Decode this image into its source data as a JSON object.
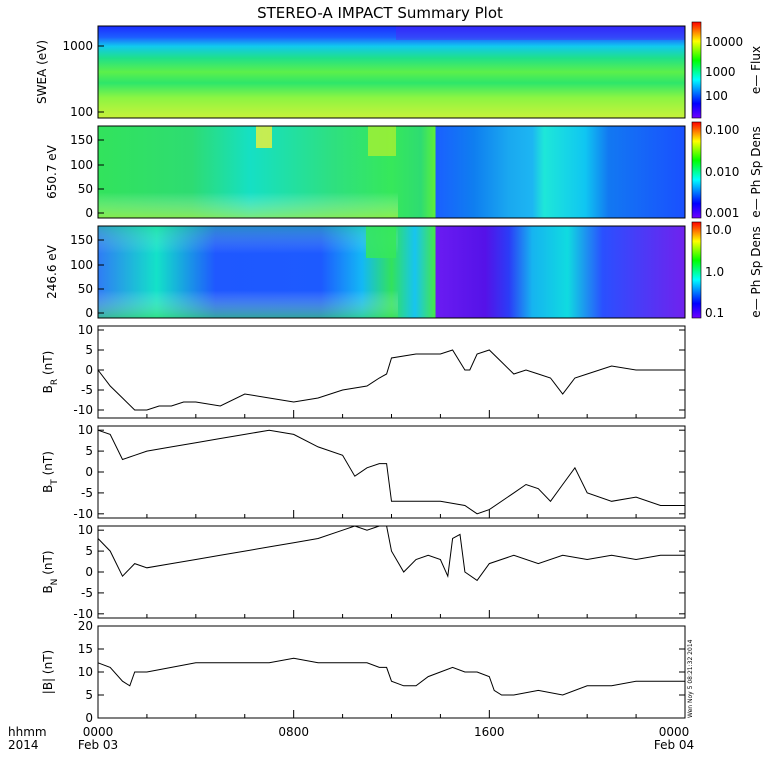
{
  "title": "STEREO-A IMPACT Summary Plot",
  "stamp": "Wen Noy 5 08:21:32 2014",
  "footer": {
    "fmt_label": "hhmm",
    "year": "2014",
    "ticks": [
      "0000",
      "0800",
      "1600",
      "0000"
    ],
    "dates": [
      "Feb 03",
      "Feb 04"
    ]
  },
  "spectrograms": [
    {
      "ylabel": "SWEA (eV)",
      "yticks": [
        "1000",
        "100"
      ],
      "cbar_label": "e— Flux",
      "cbar_ticks": [
        "10000",
        "1000",
        "100"
      ]
    },
    {
      "ylabel": "650.7 eV",
      "yticks": [
        "150",
        "100",
        "50",
        "0"
      ],
      "cbar_label": "e— Ph Sp Dens",
      "cbar_ticks": [
        "0.100",
        "0.010",
        "0.001"
      ]
    },
    {
      "ylabel": "246.6 eV",
      "yticks": [
        "150",
        "100",
        "50",
        "0"
      ],
      "cbar_label": "e— Ph Sp Dens",
      "cbar_ticks": [
        "10.0",
        "1.0",
        "0.1"
      ]
    }
  ],
  "colors": {
    "colorbar": [
      "#7000ff",
      "#0000ff",
      "#00ffff",
      "#00ff00",
      "#ffff00",
      "#ff0000"
    ]
  },
  "chart_data": [
    {
      "type": "line",
      "ylabel": "B_R (nT)",
      "ylim": [
        -12,
        11
      ],
      "yticks": [
        "10",
        "5",
        "0",
        "-5",
        "-10"
      ],
      "x": [
        0,
        0.5,
        1,
        1.5,
        2,
        2.5,
        3,
        3.5,
        4,
        5,
        6,
        7,
        8,
        9,
        10,
        11,
        11.5,
        11.8,
        12,
        13,
        14,
        14.5,
        15,
        15.2,
        15.5,
        16,
        16.5,
        17,
        17.5,
        18,
        18.5,
        19,
        19.5,
        20,
        21,
        22,
        23,
        24
      ],
      "values": [
        0,
        -4,
        -7,
        -10,
        -10,
        -9,
        -9,
        -8,
        -8,
        -9,
        -6,
        -7,
        -8,
        -7,
        -5,
        -4,
        -2,
        -1,
        3,
        4,
        4,
        5,
        0,
        0,
        4,
        5,
        2,
        -1,
        0,
        -1,
        -2,
        -6,
        -2,
        -1,
        1,
        0,
        0,
        0
      ]
    },
    {
      "type": "line",
      "ylabel": "B_T (nT)",
      "ylim": [
        -11,
        11
      ],
      "yticks": [
        "10",
        "5",
        "0",
        "-5",
        "-10"
      ],
      "x": [
        0,
        0.5,
        1,
        1.5,
        2,
        3,
        4,
        5,
        6,
        7,
        8,
        9,
        10,
        10.5,
        11,
        11.5,
        11.8,
        12,
        13,
        14,
        15,
        15.5,
        16,
        17,
        17.5,
        18,
        18.5,
        19,
        19.5,
        20,
        21,
        22,
        23,
        24
      ],
      "values": [
        10,
        9,
        3,
        4,
        5,
        6,
        7,
        8,
        9,
        10,
        9,
        6,
        4,
        -1,
        1,
        2,
        2,
        -7,
        -7,
        -7,
        -8,
        -10,
        -9,
        -5,
        -3,
        -4,
        -7,
        -3,
        1,
        -5,
        -7,
        -6,
        -8,
        -8
      ]
    },
    {
      "type": "line",
      "ylabel": "B_N (nT)",
      "ylim": [
        -11,
        11
      ],
      "yticks": [
        "10",
        "5",
        "0",
        "-5",
        "-10"
      ],
      "x": [
        0,
        0.5,
        1,
        1.5,
        2,
        3,
        4,
        5,
        6,
        7,
        8,
        9,
        10,
        10.5,
        11,
        11.5,
        11.8,
        12,
        12.5,
        13,
        13.5,
        14,
        14.3,
        14.5,
        14.8,
        15,
        15.5,
        16,
        17,
        18,
        19,
        20,
        21,
        22,
        23,
        24
      ],
      "values": [
        8,
        5,
        -1,
        2,
        1,
        2,
        3,
        4,
        5,
        6,
        7,
        8,
        10,
        11,
        10,
        11,
        11,
        5,
        0,
        3,
        4,
        3,
        -1,
        8,
        9,
        0,
        -2,
        2,
        4,
        2,
        4,
        3,
        4,
        3,
        4,
        4
      ]
    },
    {
      "type": "line",
      "ylabel": "|B| (nT)",
      "ylim": [
        0,
        20
      ],
      "yticks": [
        "20",
        "15",
        "10",
        "5",
        "0"
      ],
      "x": [
        0,
        0.5,
        1,
        1.3,
        1.5,
        2,
        3,
        4,
        5,
        6,
        7,
        8,
        9,
        10,
        11,
        11.5,
        11.8,
        12,
        12.5,
        13,
        13.5,
        14,
        14.5,
        15,
        15.5,
        16,
        16.2,
        16.5,
        17,
        18,
        19,
        20,
        21,
        22,
        23,
        24
      ],
      "values": [
        12,
        11,
        8,
        7,
        10,
        10,
        11,
        12,
        12,
        12,
        12,
        13,
        12,
        12,
        12,
        11,
        11,
        8,
        7,
        7,
        9,
        10,
        11,
        10,
        10,
        9,
        6,
        5,
        5,
        6,
        5,
        7,
        7,
        8,
        8,
        8
      ]
    }
  ]
}
